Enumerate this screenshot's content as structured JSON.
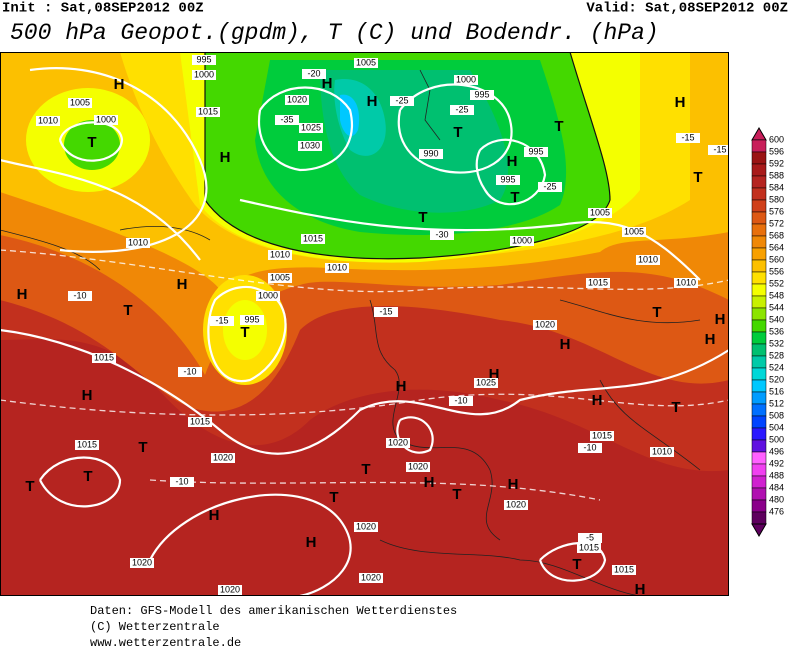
{
  "header": {
    "init": "Init : Sat,08SEP2012 00Z",
    "valid": "Valid: Sat,08SEP2012 00Z",
    "title": "500 hPa Geopot.(gpdm), T (C) und Bodendr. (hPa)"
  },
  "map": {
    "centers": [
      "H",
      "T",
      "H",
      "H",
      "T",
      "H",
      "T",
      "H",
      "T",
      "T",
      "H",
      "T",
      "T",
      "H",
      "T",
      "H",
      "H",
      "T",
      "H",
      "T",
      "T",
      "H",
      "H",
      "T",
      "T",
      "H",
      "H",
      "T",
      "H",
      "H",
      "T",
      "H",
      "T",
      "H",
      "H",
      "H",
      "T"
    ],
    "isoline_labels": [
      "1000",
      "1005",
      "1010",
      "1020",
      "1025",
      "1030",
      "1005",
      "995",
      "1000",
      "990",
      "995",
      "995",
      "1005",
      "1005",
      "1000",
      "1015",
      "1010",
      "1010",
      "1005",
      "1000",
      "995",
      "1010",
      "1015",
      "1015",
      "1010",
      "1020",
      "1020",
      "1020",
      "1020",
      "1020",
      "1015",
      "1015",
      "1020",
      "1020",
      "1025",
      "1020",
      "1020",
      "1010",
      "1015",
      "1015",
      "1015",
      "1010",
      "-25",
      "-25",
      "-30",
      "-25",
      "-15",
      "-15",
      "-10",
      "-15",
      "-10",
      "-10",
      "-10",
      "-5",
      "-10",
      "-15",
      "-20",
      "-35",
      "995",
      "1000",
      "1015"
    ]
  },
  "legend": {
    "levels": [
      600,
      596,
      592,
      588,
      584,
      580,
      576,
      572,
      568,
      564,
      560,
      556,
      552,
      548,
      544,
      540,
      536,
      532,
      528,
      524,
      520,
      516,
      512,
      508,
      504,
      500,
      496,
      492,
      488,
      484,
      480,
      476
    ],
    "colors": [
      "#c81e5a",
      "#9a1414",
      "#a81a1a",
      "#b52420",
      "#c2301e",
      "#d0401a",
      "#dd5814",
      "#e8700c",
      "#f08806",
      "#f8a000",
      "#fcc000",
      "#ffe000",
      "#f4ff00",
      "#c8f000",
      "#8ce400",
      "#44d800",
      "#00cc3c",
      "#00c070",
      "#00caa8",
      "#00d8d8",
      "#00c8ff",
      "#009cff",
      "#0070ff",
      "#0044ff",
      "#2a18ff",
      "#6010e0",
      "#ff60ff",
      "#f040f0",
      "#d020d0",
      "#b010b0",
      "#8a008a",
      "#5e005e"
    ]
  },
  "footer": {
    "line1": "Daten: GFS-Modell des amerikanischen Wetterdienstes",
    "line2": "(C) Wetterzentrale",
    "line3": "www.wetterzentrale.de"
  }
}
